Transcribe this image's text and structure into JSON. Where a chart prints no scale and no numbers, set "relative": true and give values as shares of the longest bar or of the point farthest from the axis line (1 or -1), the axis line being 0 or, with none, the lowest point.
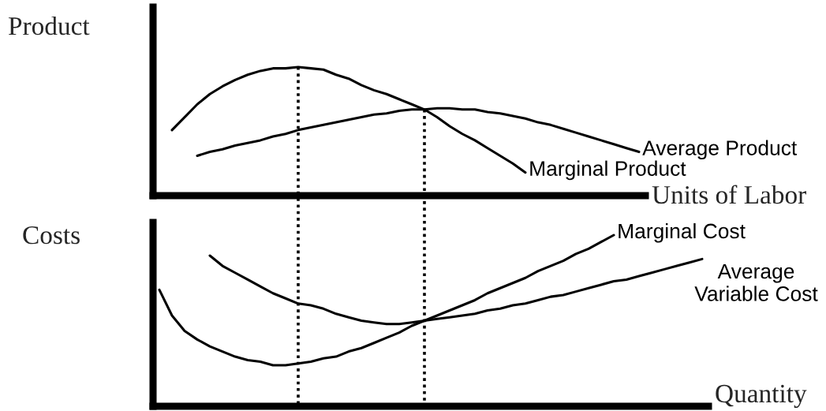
{
  "chart_data": [
    {
      "type": "line",
      "ylabel": "Product",
      "xlabel": "Units of Labor",
      "relative": true,
      "categories": [
        null,
        null,
        null,
        null,
        null,
        null,
        null,
        null,
        null,
        null,
        null,
        null,
        null,
        null,
        null,
        null,
        null,
        null,
        null,
        null,
        null,
        null,
        null,
        null,
        null,
        null,
        null,
        null,
        null,
        null,
        null,
        null,
        null,
        null,
        null,
        null,
        null,
        null,
        null
      ],
      "series": [
        {
          "name": "Marginal Product",
          "color": "#000000",
          "values": [
            null,
            0.51,
            0.61,
            0.71,
            0.79,
            0.85,
            0.9,
            0.94,
            0.97,
            0.99,
            0.99,
            1.0,
            0.99,
            0.98,
            0.94,
            0.91,
            0.86,
            0.82,
            0.79,
            0.75,
            0.71,
            0.67,
            0.61,
            0.54,
            0.48,
            0.43,
            0.37,
            0.31,
            0.25,
            0.18,
            null,
            null,
            null,
            null,
            null,
            null,
            null,
            null,
            null
          ]
        },
        {
          "name": "Average Product",
          "color": "#000000",
          "values": [
            null,
            null,
            null,
            0.31,
            0.34,
            0.36,
            0.39,
            0.41,
            0.43,
            0.46,
            0.48,
            0.51,
            0.53,
            0.55,
            0.57,
            0.59,
            0.61,
            0.63,
            0.64,
            0.66,
            0.67,
            0.67,
            0.68,
            0.68,
            0.67,
            0.67,
            0.65,
            0.64,
            0.62,
            0.6,
            0.57,
            0.55,
            0.52,
            0.49,
            0.46,
            0.43,
            0.4,
            0.37,
            0.34
          ]
        }
      ]
    },
    {
      "type": "line",
      "ylabel": "Costs",
      "xlabel": "Quantity",
      "relative": true,
      "categories": [
        null,
        null,
        null,
        null,
        null,
        null,
        null,
        null,
        null,
        null,
        null,
        null,
        null,
        null,
        null,
        null,
        null,
        null,
        null,
        null,
        null,
        null,
        null,
        null,
        null,
        null,
        null,
        null,
        null,
        null,
        null,
        null,
        null,
        null,
        null,
        null,
        null,
        null,
        null,
        null,
        null,
        null,
        null,
        null
      ],
      "series": [
        {
          "name": "Marginal Cost",
          "color": "#000000",
          "values": [
            0.68,
            0.53,
            0.44,
            0.39,
            0.35,
            0.32,
            0.29,
            0.27,
            0.26,
            0.24,
            0.24,
            0.25,
            0.26,
            0.28,
            0.29,
            0.32,
            0.34,
            0.37,
            0.4,
            0.43,
            0.47,
            0.5,
            0.53,
            0.56,
            0.59,
            0.62,
            0.66,
            0.69,
            0.72,
            0.75,
            0.79,
            0.82,
            0.85,
            0.89,
            0.92,
            0.96,
            1.0,
            null,
            null,
            null,
            null,
            null,
            null,
            null
          ]
        },
        {
          "name": "Average\nVariable Cost",
          "color": "#000000",
          "values": [
            null,
            null,
            null,
            null,
            0.88,
            0.82,
            0.78,
            0.74,
            0.7,
            0.66,
            0.63,
            0.6,
            0.59,
            0.57,
            0.54,
            0.52,
            0.5,
            0.49,
            0.48,
            0.48,
            0.49,
            0.5,
            0.51,
            0.52,
            0.53,
            0.54,
            0.56,
            0.57,
            0.59,
            0.6,
            0.62,
            0.64,
            0.65,
            0.67,
            0.69,
            0.71,
            0.73,
            0.74,
            0.76,
            0.78,
            0.8,
            0.82,
            0.84,
            0.86
          ]
        }
      ]
    }
  ]
}
